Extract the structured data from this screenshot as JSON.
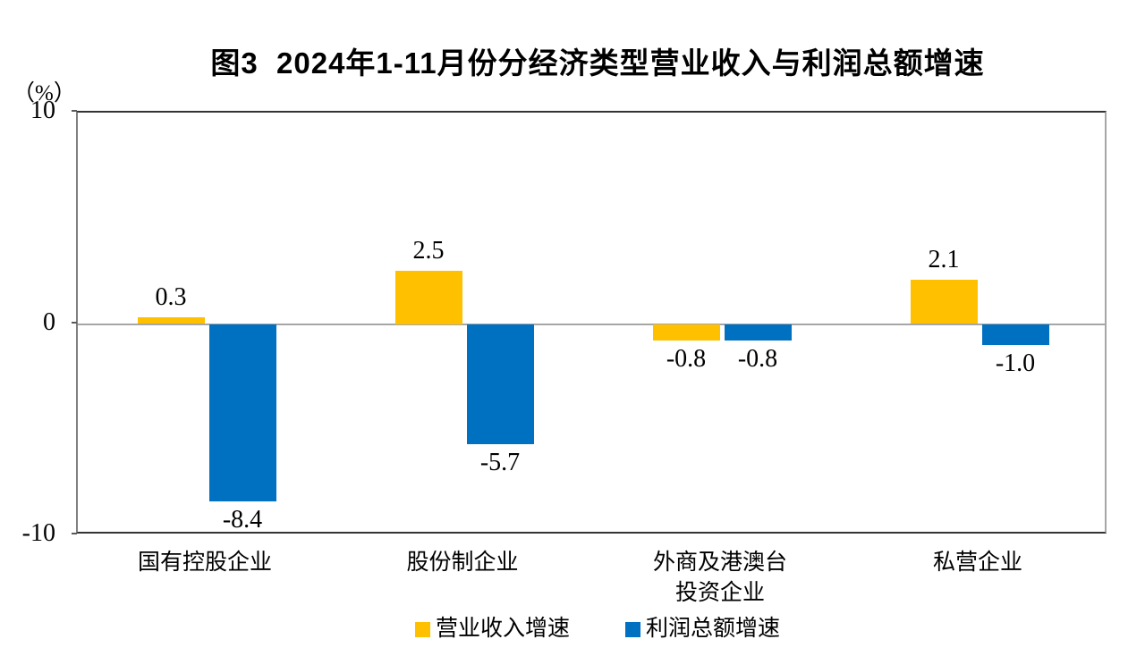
{
  "title": "图3  2024年1-11月份分经济类型营业收入与利润总额增速",
  "axis": {
    "unit_label": "（%）"
  },
  "chart_data": {
    "type": "bar",
    "categories": [
      "国有控股企业",
      "股份制企业",
      "外商及港澳台投资企业",
      "私营企业"
    ],
    "category_label_lines": [
      [
        "国有控股企业"
      ],
      [
        "股份制企业"
      ],
      [
        "外商及港澳台",
        "投资企业"
      ],
      [
        "私营企业"
      ]
    ],
    "series": [
      {
        "name": "营业收入增速",
        "color": "#FFC000",
        "values": [
          0.3,
          2.5,
          -0.8,
          2.1
        ],
        "labels": [
          "0.3",
          "2.5",
          "-0.8",
          "2.1"
        ]
      },
      {
        "name": "利润总额增速",
        "color": "#0070C0",
        "values": [
          -8.4,
          -5.7,
          -0.8,
          -1.0
        ],
        "labels": [
          "-8.4",
          "-5.7",
          "-0.8",
          "-1.0"
        ]
      }
    ],
    "ylim": [
      -10,
      10
    ],
    "ytick_labels": [
      "10",
      "0",
      "-10"
    ],
    "ytick_values": [
      10,
      0,
      -10
    ],
    "grid": false,
    "legend_position": "bottom",
    "zero_line_color": "#a6a6a6"
  }
}
